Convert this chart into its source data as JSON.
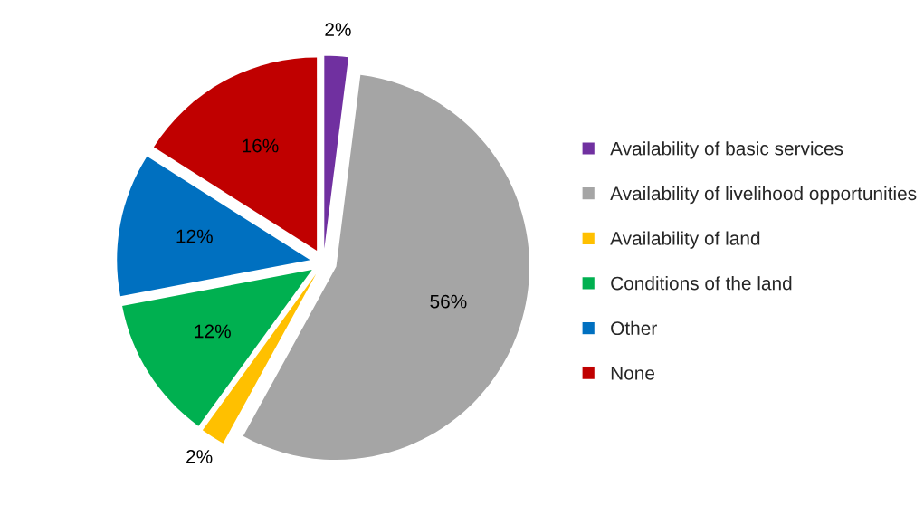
{
  "chart_data": {
    "type": "pie",
    "categories": [
      "Availability of basic services",
      "Availability of livelihood opportunities",
      "Availability of land",
      "Conditions of the land",
      "Other",
      "None"
    ],
    "values": [
      2,
      56,
      2,
      12,
      12,
      16
    ],
    "value_labels": [
      "2%",
      "56%",
      "2%",
      "12%",
      "12%",
      "16%"
    ],
    "colors": [
      "#7030a0",
      "#a5a5a5",
      "#ffc000",
      "#00b050",
      "#0070c0",
      "#c00000"
    ],
    "legend": "right"
  }
}
